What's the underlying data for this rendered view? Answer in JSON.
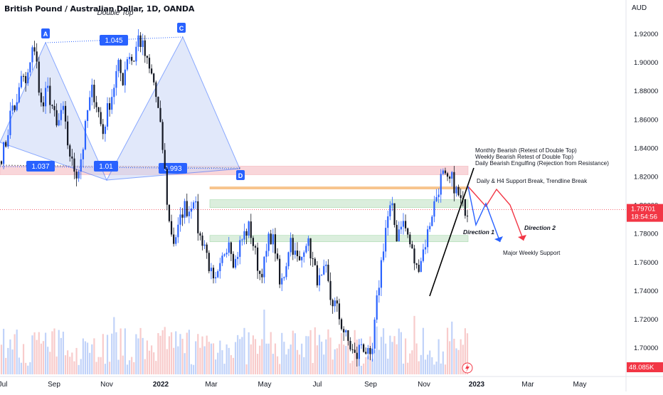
{
  "header": {
    "title": "British Pound / Australian Dollar, 1D, OANDA",
    "currency": "AUD"
  },
  "chart_data": {
    "type": "candlestick",
    "ylim": [
      1.682,
      1.936
    ],
    "x_ticks": [
      "Jul",
      "Sep",
      "Nov",
      "2022",
      "Mar",
      "May",
      "Jul",
      "Sep",
      "Nov",
      "2023",
      "Mar",
      "May"
    ],
    "y_ticks": [
      "1.92000",
      "1.90000",
      "1.88000",
      "1.86000",
      "1.84000",
      "1.82000",
      "1.80000",
      "1.78000",
      "1.76000",
      "1.74000",
      "1.72000",
      "1.70000"
    ],
    "price_path": [
      [
        1.835,
        1.845,
        1.87,
        1.868,
        1.892,
        1.882,
        1.914,
        1.898,
        1.865,
        1.882,
        1.87,
        1.852,
        1.87,
        1.845,
        1.828,
        1.822,
        1.838,
        1.866,
        1.882,
        1.868,
        1.85,
        1.868,
        1.88,
        1.898,
        1.888,
        1.908,
        1.9,
        1.918,
        1.91,
        1.896,
        1.888,
        1.865,
        1.835,
        1.79,
        1.775,
        1.784,
        1.8,
        1.796,
        1.808,
        1.778,
        1.775,
        1.758,
        1.742,
        1.752,
        1.768,
        1.778,
        1.758,
        1.772,
        1.78,
        1.785,
        1.768,
        1.752,
        1.76,
        1.78,
        1.772,
        1.742,
        1.755,
        1.778,
        1.765,
        1.758,
        1.778,
        1.768,
        1.752,
        1.745,
        1.755,
        1.734,
        1.73,
        1.718,
        1.708,
        1.7,
        1.692,
        1.704,
        1.698,
        1.688,
        1.728,
        1.76,
        1.788,
        1.8,
        1.778,
        1.79,
        1.782,
        1.768,
        1.755,
        1.765,
        1.778,
        1.795,
        1.808,
        1.822,
        1.815,
        1.818,
        1.808,
        1.8,
        1.797
      ]
    ],
    "volume_label": "48.085K",
    "last_price": "1.79701",
    "countdown": "18:54:56",
    "pattern": {
      "title": "Double Top",
      "points": [
        {
          "label": "A"
        },
        {
          "label": "C"
        },
        {
          "label": "D"
        }
      ],
      "ratios": [
        "1.045",
        "1.037",
        "1.01",
        "0.993"
      ]
    },
    "annotations": {
      "resistance_notes": [
        "Monthly Bearish (Retest of Double Top)",
        "Weekly Bearish Retest of Double Top)",
        "Daily Bearish Engulfing (Rejection from Resistance)"
      ],
      "support_break": "Daily & H4 Support Break, Trendline Break",
      "direction_1": "Direction 1",
      "direction_2": "Direction 2",
      "major_support": "Major Weekly Support"
    },
    "zones": [
      {
        "name": "resistance",
        "low": 1.8215,
        "high": 1.8275,
        "color": "#f8c9ce"
      },
      {
        "name": "orange-line",
        "low": 1.8115,
        "high": 1.813,
        "color": "#f5b267"
      },
      {
        "name": "support-1",
        "low": 1.7985,
        "high": 1.804,
        "color": "#cfe9d2"
      },
      {
        "name": "weekly-support",
        "low": 1.7745,
        "high": 1.779,
        "color": "#cfe9d2"
      }
    ],
    "colors": {
      "up": "#2962ff",
      "down": "#131722",
      "pattern_fill": "#c9d6f7",
      "pattern_stroke": "#2962ff",
      "bearish_path": "#f23645",
      "direction1_path": "#2962ff",
      "last_price_bg": "#f23645",
      "volume_up": "#a7c0f7",
      "volume_down": "#f5b5b5"
    }
  }
}
